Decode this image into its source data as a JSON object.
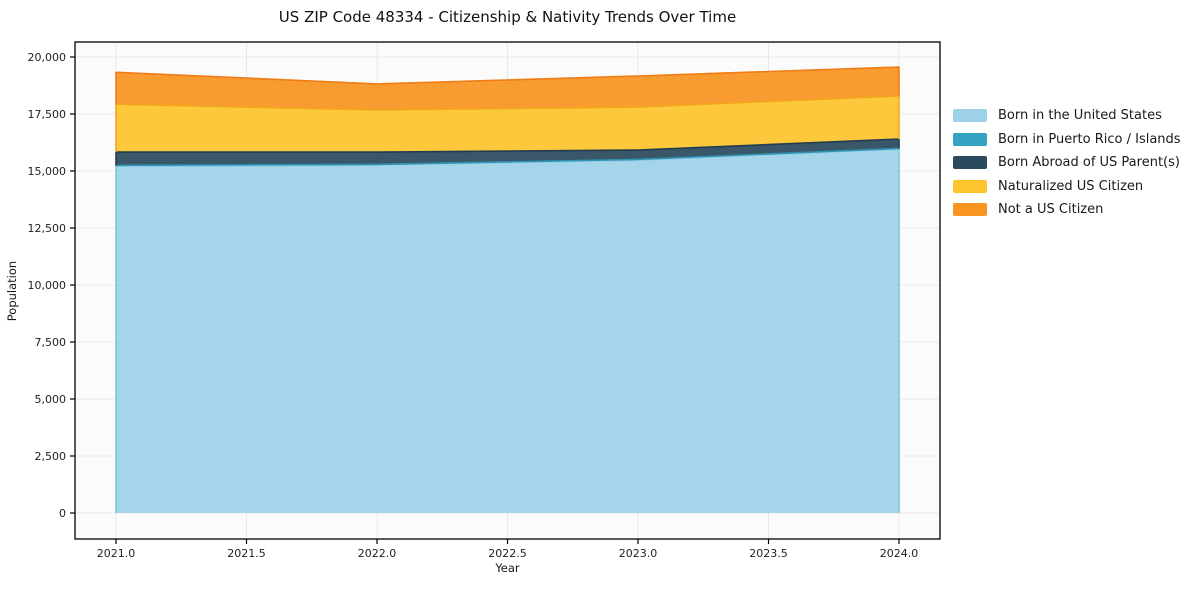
{
  "chart_data": {
    "type": "area",
    "stacked": true,
    "title": "US ZIP Code 48334 - Citizenship & Nativity Trends Over Time",
    "xlabel": "Year",
    "ylabel": "Population",
    "x": [
      2021,
      2022,
      2023,
      2024
    ],
    "series": [
      {
        "name": "Born in the United States",
        "fill": "#9ed2ea",
        "edge": "#85c3e0",
        "values": [
          15220,
          15265,
          15480,
          15965
        ]
      },
      {
        "name": "Born in Puerto Rico / Islands",
        "fill": "#35a2c2",
        "edge": "#2f93b1",
        "values": [
          30,
          25,
          30,
          25
        ]
      },
      {
        "name": "Born Abroad of US Parent(s)",
        "fill": "#2a4a5e",
        "edge": "#223d4f",
        "values": [
          580,
          540,
          410,
          410
        ]
      },
      {
        "name": "Naturalized US Citizen",
        "fill": "#fdc42d",
        "edge": "#f2a71b",
        "values": [
          2100,
          1845,
          1885,
          1890
        ]
      },
      {
        "name": "Not a US Citizen",
        "fill": "#f89521",
        "edge": "#ef7d15",
        "values": [
          1400,
          1145,
          1360,
          1270
        ]
      }
    ],
    "stack_totals": [
      19330,
      18820,
      19165,
      19560
    ],
    "xticks": [
      2021.0,
      2021.5,
      2022.0,
      2022.5,
      2023.0,
      2023.5,
      2024.0
    ],
    "xtick_labels": [
      "2021.0",
      "2021.5",
      "2022.0",
      "2022.5",
      "2023.0",
      "2023.5",
      "2024.0"
    ],
    "yticks": [
      0,
      2500,
      5000,
      7500,
      10000,
      12500,
      15000,
      17500,
      20000
    ],
    "ytick_labels": [
      "0",
      "2,500",
      "5,000",
      "7,500",
      "10,000",
      "12,500",
      "15,000",
      "17,500",
      "20,000"
    ],
    "ylim": [
      0,
      20000
    ],
    "grid": true,
    "legend_position": "outside-right",
    "colors": {
      "figure_bg": "#ffffff",
      "plot_bg": "#fbfbfb",
      "grid": "#e8e8e8",
      "spine": "#000000",
      "text": "#1a1a1a"
    }
  }
}
